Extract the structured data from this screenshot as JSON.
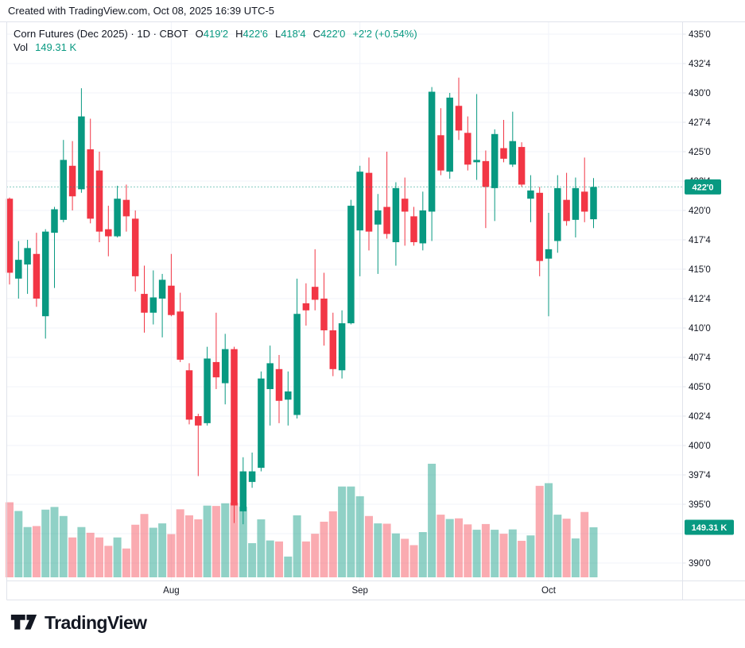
{
  "attribution": "Created with TradingView.com, Oct 08, 2025 16:39 UTC-5",
  "header": {
    "symbol_line": "Corn Futures (Dec 2025) · 1D · CBOT",
    "ohlc": {
      "o_label": "O",
      "o": "419'2",
      "h_label": "H",
      "h": "422'6",
      "l_label": "L",
      "l": "418'4",
      "c_label": "C",
      "c": "422'0",
      "change": "+2'2 (+0.54%)"
    },
    "vol_label": "Vol",
    "vol_value": "149.31 K"
  },
  "colors": {
    "up": "#089981",
    "down": "#F23645",
    "vol_up": "rgba(8,153,129,0.45)",
    "vol_down": "rgba(242,54,69,0.42)",
    "grid": "#f0f3fa",
    "frame": "#e0e3eb",
    "text": "#131722",
    "badge_bg": "#089981",
    "badge_text": "#ffffff",
    "background": "#ffffff"
  },
  "chart_data": {
    "type": "candlestick_with_volume",
    "title": "Corn Futures (Dec 2025) · 1D · CBOT",
    "grid": "on",
    "columns": [
      "open",
      "high",
      "low",
      "close",
      "volume_K"
    ],
    "candles": [
      [
        421.0,
        421.1,
        413.7,
        414.7,
        224
      ],
      [
        414.2,
        417.4,
        412.5,
        415.8,
        198
      ],
      [
        415.4,
        417.5,
        412.9,
        416.8,
        150
      ],
      [
        416.3,
        418.1,
        411.8,
        412.5,
        153
      ],
      [
        411.0,
        418.4,
        409.1,
        418.2,
        202
      ],
      [
        418.1,
        420.3,
        413.4,
        420.1,
        210
      ],
      [
        419.2,
        426.0,
        419.0,
        424.3,
        183
      ],
      [
        423.8,
        425.9,
        420.0,
        421.2,
        119
      ],
      [
        421.8,
        430.4,
        421.5,
        428.0,
        150
      ],
      [
        425.2,
        427.8,
        418.9,
        419.3,
        133
      ],
      [
        423.4,
        425.0,
        417.3,
        418.2,
        119
      ],
      [
        418.4,
        420.4,
        416.1,
        417.8,
        94
      ],
      [
        417.8,
        422.1,
        417.7,
        421.0,
        119
      ],
      [
        420.9,
        422.2,
        418.2,
        419.5,
        86
      ],
      [
        419.3,
        420.0,
        413.1,
        414.4,
        157
      ],
      [
        412.9,
        415.3,
        409.6,
        411.3,
        189
      ],
      [
        411.3,
        414.9,
        410.3,
        412.6,
        148
      ],
      [
        412.5,
        414.6,
        409.2,
        414.1,
        161
      ],
      [
        413.6,
        416.3,
        411.0,
        411.1,
        129
      ],
      [
        411.4,
        413.0,
        407.1,
        407.3,
        203
      ],
      [
        406.4,
        407.0,
        401.8,
        402.2,
        185
      ],
      [
        402.5,
        402.7,
        397.4,
        401.7,
        173
      ],
      [
        401.9,
        408.4,
        401.7,
        407.4,
        214
      ],
      [
        407.1,
        411.3,
        404.8,
        405.8,
        213
      ],
      [
        405.3,
        409.5,
        403.5,
        408.2,
        221
      ],
      [
        408.2,
        408.4,
        393.4,
        394.9,
        223
      ],
      [
        394.4,
        399.0,
        393.3,
        397.8,
        211
      ],
      [
        396.9,
        399.4,
        396.4,
        397.8,
        102
      ],
      [
        398.1,
        406.3,
        397.8,
        405.7,
        173
      ],
      [
        404.8,
        408.5,
        401.7,
        407.0,
        110
      ],
      [
        406.5,
        407.7,
        401.9,
        403.8,
        107
      ],
      [
        403.9,
        406.3,
        401.7,
        404.6,
        62
      ],
      [
        402.6,
        414.2,
        402.3,
        411.2,
        185
      ],
      [
        412.1,
        413.8,
        410.2,
        411.5,
        107
      ],
      [
        413.5,
        416.7,
        411.5,
        412.4,
        130
      ],
      [
        412.5,
        414.7,
        408.5,
        409.8,
        166
      ],
      [
        409.8,
        411.3,
        405.9,
        406.5,
        197
      ],
      [
        406.4,
        411.5,
        405.7,
        410.4,
        271
      ],
      [
        410.4,
        420.9,
        410.3,
        420.4,
        271
      ],
      [
        418.3,
        423.8,
        414.4,
        423.3,
        242
      ],
      [
        423.2,
        424.5,
        416.6,
        418.2,
        183
      ],
      [
        418.8,
        421.4,
        414.6,
        420.0,
        161
      ],
      [
        420.3,
        425.0,
        417.6,
        418.0,
        160
      ],
      [
        417.3,
        422.4,
        415.3,
        421.9,
        131
      ],
      [
        421.0,
        422.8,
        417.0,
        419.9,
        115
      ],
      [
        419.5,
        420.3,
        417.0,
        417.3,
        96
      ],
      [
        417.2,
        421.6,
        416.6,
        420.0,
        135
      ],
      [
        419.9,
        430.5,
        417.4,
        430.1,
        339
      ],
      [
        426.4,
        428.7,
        423.0,
        423.4,
        187
      ],
      [
        423.3,
        430.0,
        422.7,
        429.6,
        174
      ],
      [
        428.9,
        431.3,
        426.0,
        426.8,
        176
      ],
      [
        426.6,
        428.0,
        423.4,
        423.9,
        158
      ],
      [
        424.1,
        429.9,
        422.6,
        424.3,
        142
      ],
      [
        424.2,
        425.1,
        418.5,
        422.0,
        159
      ],
      [
        421.9,
        426.9,
        419.1,
        426.5,
        142
      ],
      [
        425.3,
        427.7,
        424.1,
        424.4,
        130
      ],
      [
        423.9,
        428.4,
        423.7,
        425.9,
        143
      ],
      [
        425.4,
        425.8,
        422.0,
        422.2,
        109
      ],
      [
        421.0,
        423.0,
        419.0,
        421.7,
        125
      ],
      [
        421.5,
        422.0,
        414.4,
        415.7,
        273
      ],
      [
        415.9,
        419.8,
        411.0,
        416.7,
        281
      ],
      [
        417.4,
        423.0,
        416.4,
        421.9,
        187
      ],
      [
        420.9,
        423.2,
        418.7,
        419.1,
        175
      ],
      [
        419.2,
        422.8,
        417.7,
        421.9,
        116
      ],
      [
        421.6,
        424.5,
        419.0,
        419.9,
        195
      ],
      [
        419.25,
        422.75,
        418.5,
        422.0,
        149.31
      ]
    ],
    "last_price": 422.0,
    "last_price_label": "422'0",
    "last_volume_label": "149.31 K",
    "price_axis": {
      "range": [
        389.0,
        436.1
      ],
      "gridline_prices": [
        435.0,
        432.5,
        430.0,
        427.5,
        425.0,
        422.5,
        420.0,
        417.5,
        415.0,
        412.5,
        410.0,
        407.5,
        405.0,
        402.5,
        400.0,
        397.5,
        395.0,
        392.5,
        390.0
      ],
      "labels": [
        {
          "price": 435.0,
          "text": "435'0"
        },
        {
          "price": 432.5,
          "text": "432'4"
        },
        {
          "price": 430.0,
          "text": "430'0"
        },
        {
          "price": 427.5,
          "text": "427'4"
        },
        {
          "price": 425.0,
          "text": "425'0"
        },
        {
          "price": 422.5,
          "text": "422'4"
        },
        {
          "price": 420.0,
          "text": "420'0"
        },
        {
          "price": 417.5,
          "text": "417'4"
        },
        {
          "price": 415.0,
          "text": "415'0"
        },
        {
          "price": 412.5,
          "text": "412'4"
        },
        {
          "price": 410.0,
          "text": "410'0"
        },
        {
          "price": 407.5,
          "text": "407'4"
        },
        {
          "price": 405.0,
          "text": "405'0"
        },
        {
          "price": 402.5,
          "text": "402'4"
        },
        {
          "price": 400.0,
          "text": "400'0"
        },
        {
          "price": 397.5,
          "text": "397'4"
        },
        {
          "price": 395.0,
          "text": "395'0"
        },
        {
          "price": 390.0,
          "text": "390'0"
        }
      ]
    },
    "time_axis": {
      "ticks": [
        {
          "label": "Aug",
          "index": 18
        },
        {
          "label": "Sep",
          "index": 39
        },
        {
          "label": "Oct",
          "index": 60
        }
      ]
    },
    "legend_position": "top-left"
  },
  "logo": {
    "text": "TradingView"
  }
}
